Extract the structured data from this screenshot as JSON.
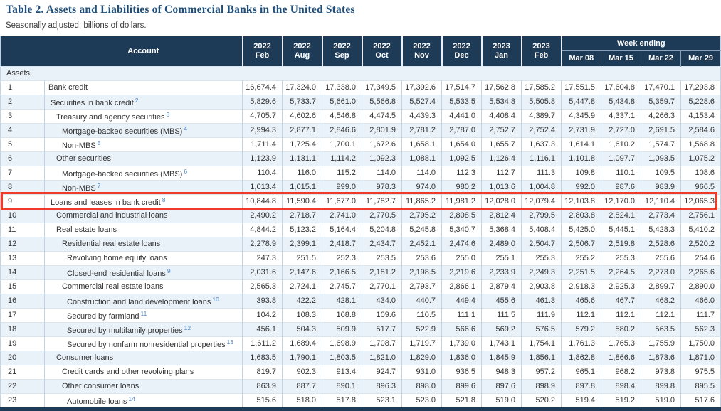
{
  "page": {
    "title": "Table 2. Assets and Liabilities of Commercial Banks in the United States",
    "subtitle": "Seasonally adjusted, billions of dollars."
  },
  "colors": {
    "navy_header": "#1d3a57",
    "alt_row_blue": "#e9f1f9",
    "grid_vertical": "#c3d2e2",
    "grid_horizontal": "#dce5ef",
    "title_navy": "#1e4e79",
    "superscript_blue": "#4e86c6",
    "highlight_red": "#ef3b28"
  },
  "table": {
    "account_header": "Account",
    "week_ending_label": "Week ending",
    "section_label": "Assets",
    "month_columns": [
      {
        "year": "2022",
        "month": "Feb"
      },
      {
        "year": "2022",
        "month": "Aug"
      },
      {
        "year": "2022",
        "month": "Sep"
      },
      {
        "year": "2022",
        "month": "Oct"
      },
      {
        "year": "2022",
        "month": "Nov"
      },
      {
        "year": "2022",
        "month": "Dec"
      },
      {
        "year": "2023",
        "month": "Jan"
      },
      {
        "year": "2023",
        "month": "Feb"
      }
    ],
    "week_columns": [
      "Mar 08",
      "Mar 15",
      "Mar 22",
      "Mar 29"
    ],
    "highlighted_row_num": "9",
    "rows": [
      {
        "num": "1",
        "label": "Bank credit",
        "sup": "",
        "indent": 0,
        "values": [
          "16,674.4",
          "17,324.0",
          "17,338.0",
          "17,349.5",
          "17,392.6",
          "17,514.7",
          "17,562.8",
          "17,585.2",
          "17,551.5",
          "17,604.8",
          "17,470.1",
          "17,293.8"
        ]
      },
      {
        "num": "2",
        "label": "Securities in bank credit",
        "sup": "2",
        "indent": 1,
        "values": [
          "5,829.6",
          "5,733.7",
          "5,661.0",
          "5,566.8",
          "5,527.4",
          "5,533.5",
          "5,534.8",
          "5,505.8",
          "5,447.8",
          "5,434.8",
          "5,359.7",
          "5,228.6"
        ]
      },
      {
        "num": "3",
        "label": "Treasury and agency securities",
        "sup": "3",
        "indent": 2,
        "values": [
          "4,705.7",
          "4,602.6",
          "4,546.8",
          "4,474.5",
          "4,439.3",
          "4,441.0",
          "4,408.4",
          "4,389.7",
          "4,345.9",
          "4,337.1",
          "4,266.3",
          "4,153.4"
        ]
      },
      {
        "num": "4",
        "label": "Mortgage-backed securities (MBS)",
        "sup": "4",
        "indent": 3,
        "values": [
          "2,994.3",
          "2,877.1",
          "2,846.6",
          "2,801.9",
          "2,781.2",
          "2,787.0",
          "2,752.7",
          "2,752.4",
          "2,731.9",
          "2,727.0",
          "2,691.5",
          "2,584.6"
        ]
      },
      {
        "num": "5",
        "label": "Non-MBS",
        "sup": "5",
        "indent": 3,
        "values": [
          "1,711.4",
          "1,725.4",
          "1,700.1",
          "1,672.6",
          "1,658.1",
          "1,654.0",
          "1,655.7",
          "1,637.3",
          "1,614.1",
          "1,610.2",
          "1,574.7",
          "1,568.8"
        ]
      },
      {
        "num": "6",
        "label": "Other securities",
        "sup": "",
        "indent": 2,
        "values": [
          "1,123.9",
          "1,131.1",
          "1,114.2",
          "1,092.3",
          "1,088.1",
          "1,092.5",
          "1,126.4",
          "1,116.1",
          "1,101.8",
          "1,097.7",
          "1,093.5",
          "1,075.2"
        ]
      },
      {
        "num": "7",
        "label": "Mortgage-backed securities (MBS)",
        "sup": "6",
        "indent": 3,
        "values": [
          "110.4",
          "116.0",
          "115.2",
          "114.0",
          "114.0",
          "112.3",
          "112.7",
          "111.3",
          "109.8",
          "110.1",
          "109.5",
          "108.6"
        ]
      },
      {
        "num": "8",
        "label": "Non-MBS",
        "sup": "7",
        "indent": 3,
        "values": [
          "1,013.4",
          "1,015.1",
          "999.0",
          "978.3",
          "974.0",
          "980.2",
          "1,013.6",
          "1,004.8",
          "992.0",
          "987.6",
          "983.9",
          "966.5"
        ]
      },
      {
        "num": "9",
        "label": "Loans and leases in bank credit",
        "sup": "8",
        "indent": 1,
        "values": [
          "10,844.8",
          "11,590.4",
          "11,677.0",
          "11,782.7",
          "11,865.2",
          "11,981.2",
          "12,028.0",
          "12,079.4",
          "12,103.8",
          "12,170.0",
          "12,110.4",
          "12,065.3"
        ]
      },
      {
        "num": "10",
        "label": "Commercial and industrial loans",
        "sup": "",
        "indent": 2,
        "values": [
          "2,490.2",
          "2,718.7",
          "2,741.0",
          "2,770.5",
          "2,795.2",
          "2,808.5",
          "2,812.4",
          "2,799.5",
          "2,803.8",
          "2,824.1",
          "2,773.4",
          "2,756.1"
        ]
      },
      {
        "num": "11",
        "label": "Real estate loans",
        "sup": "",
        "indent": 2,
        "values": [
          "4,844.2",
          "5,123.2",
          "5,164.4",
          "5,204.8",
          "5,245.8",
          "5,340.7",
          "5,368.4",
          "5,408.4",
          "5,425.0",
          "5,445.1",
          "5,428.3",
          "5,410.2"
        ]
      },
      {
        "num": "12",
        "label": "Residential real estate loans",
        "sup": "",
        "indent": 3,
        "values": [
          "2,278.9",
          "2,399.1",
          "2,418.7",
          "2,434.7",
          "2,452.1",
          "2,474.6",
          "2,489.0",
          "2,504.7",
          "2,506.7",
          "2,519.8",
          "2,528.6",
          "2,520.2"
        ]
      },
      {
        "num": "13",
        "label": "Revolving home equity loans",
        "sup": "",
        "indent": 4,
        "values": [
          "247.3",
          "251.5",
          "252.3",
          "253.5",
          "253.6",
          "255.0",
          "255.1",
          "255.3",
          "255.2",
          "255.3",
          "255.6",
          "254.6"
        ]
      },
      {
        "num": "14",
        "label": "Closed-end residential loans",
        "sup": "9",
        "indent": 4,
        "values": [
          "2,031.6",
          "2,147.6",
          "2,166.5",
          "2,181.2",
          "2,198.5",
          "2,219.6",
          "2,233.9",
          "2,249.3",
          "2,251.5",
          "2,264.5",
          "2,273.0",
          "2,265.6"
        ]
      },
      {
        "num": "15",
        "label": "Commercial real estate loans",
        "sup": "",
        "indent": 3,
        "values": [
          "2,565.3",
          "2,724.1",
          "2,745.7",
          "2,770.1",
          "2,793.7",
          "2,866.1",
          "2,879.4",
          "2,903.8",
          "2,918.3",
          "2,925.3",
          "2,899.7",
          "2,890.0"
        ]
      },
      {
        "num": "16",
        "label": "Construction and land development loans",
        "sup": "10",
        "indent": 4,
        "values": [
          "393.8",
          "422.2",
          "428.1",
          "434.0",
          "440.7",
          "449.4",
          "455.6",
          "461.3",
          "465.6",
          "467.7",
          "468.2",
          "466.0"
        ]
      },
      {
        "num": "17",
        "label": "Secured by farmland",
        "sup": "11",
        "indent": 4,
        "values": [
          "104.2",
          "108.3",
          "108.8",
          "109.6",
          "110.5",
          "111.1",
          "111.5",
          "111.9",
          "112.1",
          "112.1",
          "112.1",
          "111.7"
        ]
      },
      {
        "num": "18",
        "label": "Secured by multifamily properties",
        "sup": "12",
        "indent": 4,
        "values": [
          "456.1",
          "504.3",
          "509.9",
          "517.7",
          "522.9",
          "566.6",
          "569.2",
          "576.5",
          "579.2",
          "580.2",
          "563.5",
          "562.3"
        ]
      },
      {
        "num": "19",
        "label": "Secured by nonfarm nonresidential properties",
        "sup": "13",
        "indent": 4,
        "values": [
          "1,611.2",
          "1,689.4",
          "1,698.9",
          "1,708.7",
          "1,719.7",
          "1,739.0",
          "1,743.1",
          "1,754.1",
          "1,761.3",
          "1,765.3",
          "1,755.9",
          "1,750.0"
        ]
      },
      {
        "num": "20",
        "label": "Consumer loans",
        "sup": "",
        "indent": 2,
        "values": [
          "1,683.5",
          "1,790.1",
          "1,803.5",
          "1,821.0",
          "1,829.0",
          "1,836.0",
          "1,845.9",
          "1,856.1",
          "1,862.8",
          "1,866.6",
          "1,873.6",
          "1,871.0"
        ]
      },
      {
        "num": "21",
        "label": "Credit cards and other revolving plans",
        "sup": "",
        "indent": 3,
        "values": [
          "819.7",
          "902.3",
          "913.4",
          "924.7",
          "931.0",
          "936.5",
          "948.3",
          "957.2",
          "965.1",
          "968.2",
          "973.8",
          "975.5"
        ]
      },
      {
        "num": "22",
        "label": "Other consumer loans",
        "sup": "",
        "indent": 3,
        "values": [
          "863.9",
          "887.7",
          "890.1",
          "896.3",
          "898.0",
          "899.6",
          "897.6",
          "898.9",
          "897.8",
          "898.4",
          "899.8",
          "895.5"
        ]
      },
      {
        "num": "23",
        "label": "Automobile loans",
        "sup": "14",
        "indent": 4,
        "values": [
          "515.6",
          "518.0",
          "517.8",
          "523.1",
          "523.0",
          "521.8",
          "519.0",
          "520.2",
          "519.4",
          "519.2",
          "519.0",
          "517.6"
        ]
      }
    ]
  }
}
